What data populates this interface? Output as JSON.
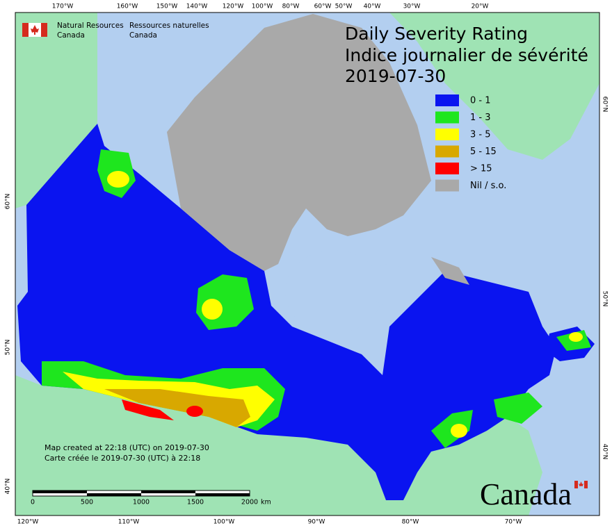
{
  "header": {
    "agency_en": [
      "Natural Resources",
      "Canada"
    ],
    "agency_fr": [
      "Ressources naturelles",
      "Canada"
    ],
    "title": [
      "Daily Severity Rating",
      "Indice journalier de sévérité",
      "2019-07-30"
    ]
  },
  "legend": [
    {
      "label": "0 - 1",
      "color": "#0a14f0"
    },
    {
      "label": "1 - 3",
      "color": "#1ee61e"
    },
    {
      "label": "3 - 5",
      "color": "#ffff00"
    },
    {
      "label": "5 - 15",
      "color": "#d8a800"
    },
    {
      "label": "> 15",
      "color": "#ff0000"
    },
    {
      "label": "Nil / s.o.",
      "color": "#a9a9a9"
    }
  ],
  "graticule": {
    "top": [
      "170°W",
      "160°W",
      "150°W",
      "140°W",
      "120°W",
      "100°W",
      "80°W",
      "60°W",
      "50°W",
      "40°W",
      "30°W",
      "20°W"
    ],
    "bottom": [
      "120°W",
      "110°W",
      "100°W",
      "90°W",
      "80°W",
      "70°W"
    ],
    "left": [
      "60°N",
      "50°N",
      "40°N"
    ],
    "right": [
      "60°N",
      "50°N",
      "40°N"
    ]
  },
  "footer": {
    "created_en": "Map created at 22:18 (UTC) on 2019-07-30",
    "created_fr": "Carte créée le 2019-07-30 (UTC) à 22:18",
    "scale": [
      "0",
      "500",
      "1000",
      "1500",
      "2000"
    ],
    "scale_unit": "km",
    "wordmark": "Canada"
  }
}
